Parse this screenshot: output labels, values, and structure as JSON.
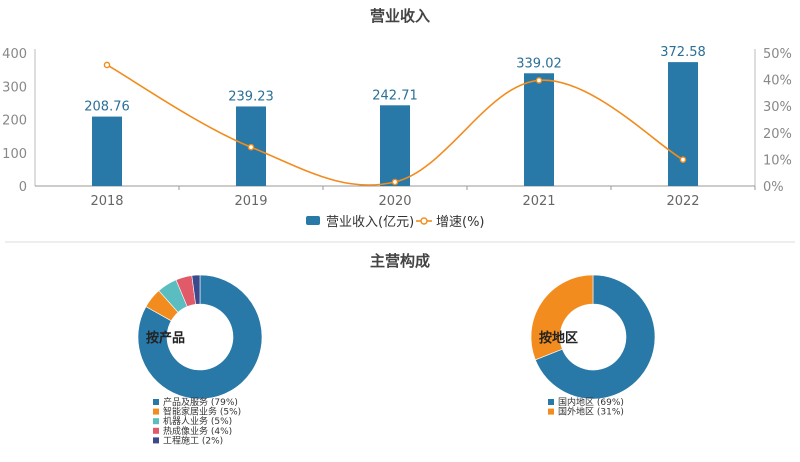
{
  "chart_data": [
    {
      "type": "bar",
      "title": "营业收入",
      "categories": [
        "2018",
        "2019",
        "2020",
        "2021",
        "2022"
      ],
      "series": [
        {
          "name": "营业收入(亿元)",
          "values": [
            208.76,
            239.23,
            242.71,
            339.02,
            372.58
          ],
          "axis": "left"
        },
        {
          "name": "增速(%)",
          "type": "line",
          "values": [
            45.5,
            14.6,
            1.5,
            39.7,
            9.9
          ],
          "axis": "right"
        }
      ],
      "y_left": {
        "ticks": [
          "0",
          "100",
          "200",
          "300",
          "400"
        ],
        "ylim": [
          0,
          400
        ]
      },
      "y_right": {
        "ticks": [
          "0%",
          "10%",
          "20%",
          "30%",
          "40%",
          "50%"
        ],
        "ylim": [
          0,
          50
        ]
      },
      "data_labels": [
        "208.76",
        "239.23",
        "242.71",
        "339.02",
        "372.58"
      ],
      "legend_position": "bottom",
      "colors": {
        "bar": "#2878a8",
        "line": "#f28c1e"
      }
    },
    {
      "type": "pie",
      "title": "主营构成",
      "donut": true,
      "center_label": "按产品",
      "slices": [
        {
          "label": "产品及服务 (79%)",
          "value": 79,
          "color": "#2878a8"
        },
        {
          "label": "智能家居业务 (5%)",
          "value": 5,
          "color": "#f28c1e"
        },
        {
          "label": "机器人业务 (5%)",
          "value": 5,
          "color": "#5bbdbf"
        },
        {
          "label": "热成像业务 (4%)",
          "value": 4,
          "color": "#e05a6a"
        },
        {
          "label": "工程施工 (2%)",
          "value": 2,
          "color": "#3a4a8c"
        }
      ]
    },
    {
      "type": "pie",
      "donut": true,
      "center_label": "按地区",
      "slices": [
        {
          "label": "国内地区 (69%)",
          "value": 69,
          "color": "#2878a8"
        },
        {
          "label": "国外地区 (31%)",
          "value": 31,
          "color": "#f28c1e"
        }
      ]
    }
  ]
}
